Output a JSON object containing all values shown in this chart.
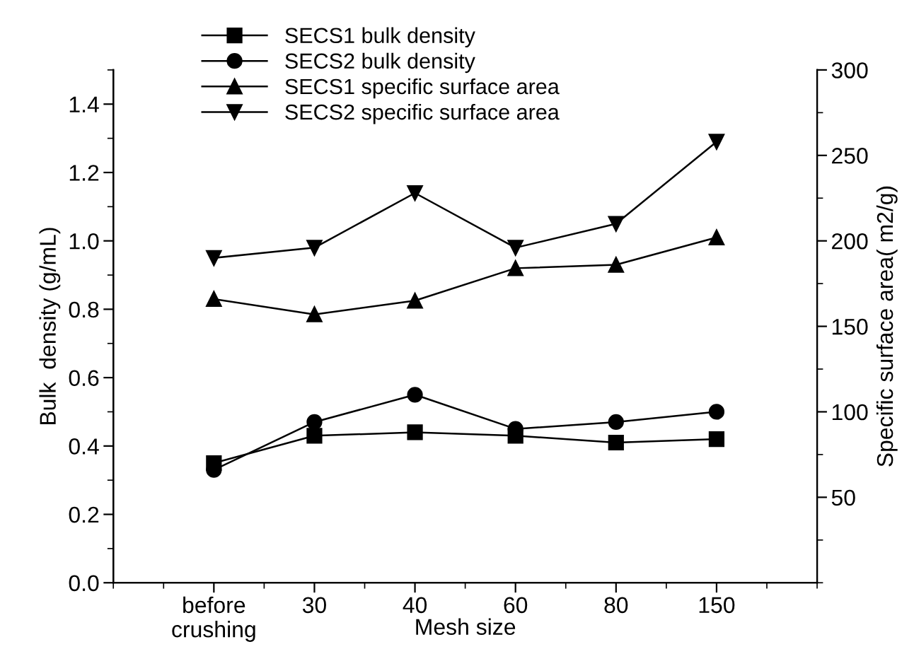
{
  "chart_data": {
    "type": "line",
    "xlabel": "Mesh size",
    "ylabel": "Bulk  density (g/mL)",
    "y2label": "Specific surface area( m2/g)",
    "categories": [
      "before\ncrushing",
      "30",
      "40",
      "60",
      "80",
      "150"
    ],
    "series": [
      {
        "name": "SECS1 bulk density",
        "color": "#000000",
        "marker": "square",
        "values": [
          0.35,
          0.43,
          0.44,
          0.43,
          0.41,
          0.42
        ]
      },
      {
        "name": "SECS2 bulk density",
        "color": "#000000",
        "marker": "circle",
        "values": [
          0.33,
          0.47,
          0.55,
          0.45,
          0.47,
          0.5
        ]
      },
      {
        "name": "SECS1 specific surface area",
        "color": "#000000",
        "marker": "triangle",
        "axis": "y2",
        "values": [
          166,
          157,
          165,
          184,
          186,
          202
        ]
      },
      {
        "name": "SECS2 specific surface area",
        "color": "#000000",
        "marker": "triangle_down",
        "axis": "y2",
        "values": [
          190,
          196,
          228,
          196,
          210,
          258
        ]
      }
    ],
    "ylim": [
      0,
      1.5
    ],
    "yticks": [
      {
        "value": 0,
        "label": "0.0"
      },
      0.2,
      0.4,
      0.6,
      0.8,
      {
        "value": 1,
        "label": "1.0"
      },
      1.2,
      1.4
    ],
    "y2lim": [
      0,
      300
    ],
    "y2ticks": [
      50,
      100,
      150,
      200,
      250,
      300
    ],
    "legend": "top",
    "grid": false,
    "line_style": "solid"
  }
}
